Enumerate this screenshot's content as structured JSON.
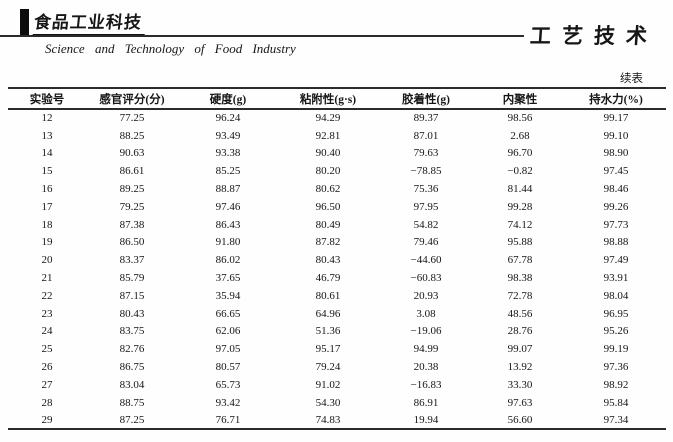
{
  "masthead": {
    "logo_cn": "食品工业科技",
    "journal_en": "Science and Technology of Food Industry",
    "section_cn": "工艺技术"
  },
  "table": {
    "continued_label": "续表",
    "columns": [
      "实验号",
      "感官评分(分)",
      "硬度(g)",
      "粘附性(g·s)",
      "胶着性(g)",
      "内聚性",
      "持水力(%)"
    ],
    "rows": [
      [
        "12",
        "77.25",
        "96.24",
        "94.29",
        "89.37",
        "98.56",
        "99.17"
      ],
      [
        "13",
        "88.25",
        "93.49",
        "92.81",
        "87.01",
        "2.68",
        "99.10"
      ],
      [
        "14",
        "90.63",
        "93.38",
        "90.40",
        "79.63",
        "96.70",
        "98.90"
      ],
      [
        "15",
        "86.61",
        "85.25",
        "80.20",
        "−78.85",
        "−0.82",
        "97.45"
      ],
      [
        "16",
        "89.25",
        "88.87",
        "80.62",
        "75.36",
        "81.44",
        "98.46"
      ],
      [
        "17",
        "79.25",
        "97.46",
        "96.50",
        "97.95",
        "99.28",
        "99.26"
      ],
      [
        "18",
        "87.38",
        "86.43",
        "80.49",
        "54.82",
        "74.12",
        "97.73"
      ],
      [
        "19",
        "86.50",
        "91.80",
        "87.82",
        "79.46",
        "95.88",
        "98.88"
      ],
      [
        "20",
        "83.37",
        "86.02",
        "80.43",
        "−44.60",
        "67.78",
        "97.49"
      ],
      [
        "21",
        "85.79",
        "37.65",
        "46.79",
        "−60.83",
        "98.38",
        "93.91"
      ],
      [
        "22",
        "87.15",
        "35.94",
        "80.61",
        "20.93",
        "72.78",
        "98.04"
      ],
      [
        "23",
        "80.43",
        "66.65",
        "64.96",
        "3.08",
        "48.56",
        "96.95"
      ],
      [
        "24",
        "83.75",
        "62.06",
        "51.36",
        "−19.06",
        "28.76",
        "95.26"
      ],
      [
        "25",
        "82.76",
        "97.05",
        "95.17",
        "94.99",
        "99.07",
        "99.19"
      ],
      [
        "26",
        "86.75",
        "80.57",
        "79.24",
        "20.38",
        "13.92",
        "97.36"
      ],
      [
        "27",
        "83.04",
        "65.73",
        "91.02",
        "−16.83",
        "33.30",
        "98.92"
      ],
      [
        "28",
        "88.75",
        "93.42",
        "54.30",
        "86.91",
        "97.63",
        "95.84"
      ],
      [
        "29",
        "87.25",
        "76.71",
        "74.83",
        "19.94",
        "56.60",
        "97.34"
      ]
    ]
  }
}
